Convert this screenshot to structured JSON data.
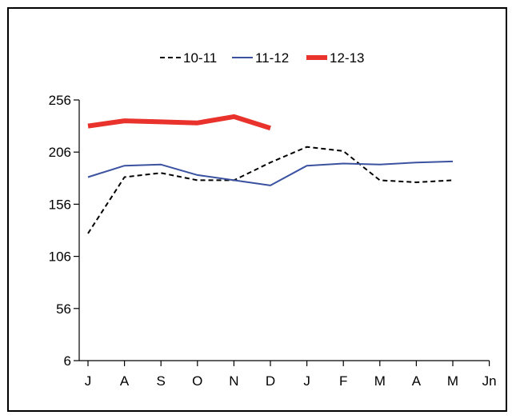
{
  "chart_data": {
    "type": "line",
    "categories": [
      "J",
      "A",
      "S",
      "O",
      "N",
      "D",
      "J",
      "F",
      "M",
      "A",
      "M",
      "Jn"
    ],
    "ylim": [
      6,
      256
    ],
    "yticks": [
      6,
      56,
      106,
      156,
      206,
      256
    ],
    "legend_position": "top-center",
    "grid": false,
    "series": [
      {
        "name": "10-11",
        "color": "#000000",
        "style": "dashed",
        "values": [
          128,
          182,
          186,
          179,
          179,
          196,
          211,
          207,
          179,
          177,
          179,
          null
        ]
      },
      {
        "name": "11-12",
        "color": "#3a52a0",
        "style": "solid",
        "values": [
          182,
          193,
          194,
          184,
          179,
          174,
          193,
          195,
          194,
          196,
          197,
          null
        ]
      },
      {
        "name": "12-13",
        "color": "#e8322b",
        "style": "thick",
        "values": [
          231,
          236,
          235,
          234,
          240,
          229,
          null,
          null,
          null,
          null,
          null,
          null
        ]
      }
    ]
  }
}
